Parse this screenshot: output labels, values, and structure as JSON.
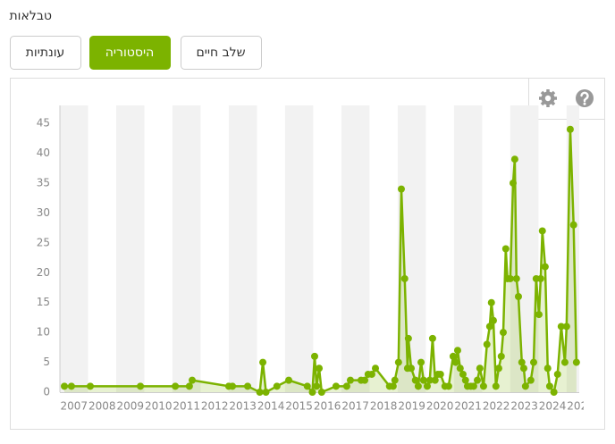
{
  "header": {
    "title": "טבלאות"
  },
  "tabs": [
    "עונתיות",
    "היסטוריה",
    "שלב חיים"
  ],
  "active_tab": 1,
  "chart_data": {
    "type": "line",
    "area": true,
    "x": [
      2007.16,
      2007.41,
      2008.08,
      2009.86,
      2011.1,
      2011.6,
      2011.7,
      2013.0,
      2013.13,
      2013.67,
      2014.1,
      2014.21,
      2014.32,
      2014.71,
      2015.13,
      2015.79,
      2015.97,
      2016.05,
      2016.12,
      2016.21,
      2016.3,
      2016.81,
      2017.19,
      2017.32,
      2017.7,
      2017.83,
      2017.95,
      2018.08,
      2018.21,
      2018.71,
      2018.84,
      2018.9,
      2019.03,
      2019.13,
      2019.25,
      2019.35,
      2019.38,
      2019.48,
      2019.63,
      2019.73,
      2019.83,
      2019.92,
      2020.05,
      2020.14,
      2020.24,
      2020.33,
      2020.43,
      2020.52,
      2020.68,
      2020.81,
      2020.97,
      2021.06,
      2021.13,
      2021.22,
      2021.32,
      2021.41,
      2021.48,
      2021.6,
      2021.7,
      2021.83,
      2021.92,
      2022.05,
      2022.17,
      2022.27,
      2022.33,
      2022.4,
      2022.49,
      2022.59,
      2022.68,
      2022.75,
      2022.84,
      2022.9,
      2023.0,
      2023.1,
      2023.16,
      2023.22,
      2023.29,
      2023.41,
      2023.48,
      2023.54,
      2023.73,
      2023.83,
      2023.92,
      2024.02,
      2024.08,
      2024.14,
      2024.24,
      2024.33,
      2024.4,
      2024.55,
      2024.68,
      2024.81,
      2024.94,
      2025.0,
      2025.13,
      2025.25,
      2025.35
    ],
    "series": [
      {
        "color": "#7cb300",
        "values": [
          1,
          1,
          1,
          1,
          1,
          1,
          2,
          1,
          1,
          1,
          0,
          5,
          0,
          1,
          2,
          1,
          0,
          6,
          1,
          4,
          0,
          1,
          1,
          2,
          2,
          2,
          3,
          3,
          4,
          1,
          1,
          2,
          5,
          34,
          19,
          4,
          9,
          4,
          2,
          1,
          5,
          2,
          1,
          2,
          9,
          2,
          3,
          3,
          1,
          1,
          6,
          5,
          7,
          4,
          3,
          2,
          1,
          1,
          1,
          2,
          4,
          1,
          8,
          11,
          15,
          12,
          1,
          4,
          6,
          10,
          24,
          19,
          19,
          35,
          39,
          19,
          16,
          5,
          4,
          1,
          2,
          5,
          19,
          13,
          19,
          27,
          21,
          4,
          1,
          0,
          3,
          11,
          5,
          11,
          44,
          28,
          5
        ]
      }
    ],
    "xlim": [
      2007,
      2025.45
    ],
    "ylim": [
      0,
      48
    ],
    "xticks": [
      2007,
      2008,
      2009,
      2010,
      2011,
      2012,
      2013,
      2014,
      2015,
      2016,
      2017,
      2018,
      2019,
      2020,
      2021,
      2022,
      2023,
      2024,
      2025
    ],
    "yticks": [
      0,
      5,
      10,
      15,
      20,
      25,
      30,
      35,
      40,
      45
    ],
    "stripes": true
  }
}
